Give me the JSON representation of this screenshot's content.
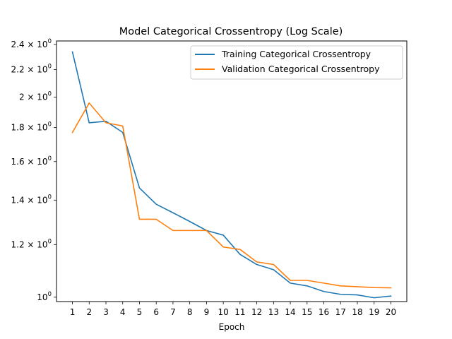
{
  "chart_data": {
    "type": "line",
    "title": "Model Categorical Crossentropy (Log Scale)",
    "xlabel": "Epoch",
    "ylabel": "",
    "yscale": "log",
    "grid": false,
    "legend_position": "top-right",
    "x": [
      1,
      2,
      3,
      4,
      5,
      6,
      7,
      8,
      9,
      10,
      11,
      12,
      13,
      14,
      15,
      16,
      17,
      18,
      19,
      20
    ],
    "x_ticks": [
      "1",
      "2",
      "3",
      "4",
      "5",
      "6",
      "7",
      "8",
      "9",
      "10",
      "11",
      "12",
      "13",
      "14",
      "15",
      "16",
      "17",
      "18",
      "19",
      "20"
    ],
    "xlim": [
      0.05,
      20.95
    ],
    "ylim": [
      0.985,
      2.43
    ],
    "y_ticks": [
      {
        "value": 1.0,
        "base": "10",
        "exp": "0"
      },
      {
        "value": 1.2,
        "base": "1.2 × 10",
        "exp": "0"
      },
      {
        "value": 1.4,
        "base": "1.4 × 10",
        "exp": "0"
      },
      {
        "value": 1.6,
        "base": "1.6 × 10",
        "exp": "0"
      },
      {
        "value": 1.8,
        "base": "1.8 × 10",
        "exp": "0"
      },
      {
        "value": 2.0,
        "base": "2 × 10",
        "exp": "0"
      },
      {
        "value": 2.2,
        "base": "2.2 × 10",
        "exp": "0"
      },
      {
        "value": 2.4,
        "base": "2.4 × 10",
        "exp": "0"
      }
    ],
    "series": [
      {
        "name": "Training Categorical Crossentropy",
        "color": "#1f77b4",
        "values": [
          2.34,
          1.83,
          1.84,
          1.77,
          1.46,
          1.38,
          1.34,
          1.3,
          1.26,
          1.24,
          1.16,
          1.12,
          1.1,
          1.05,
          1.04,
          1.02,
          1.01,
          1.008,
          0.998,
          1.004
        ]
      },
      {
        "name": "Validation Categorical Crossentropy",
        "color": "#ff7f0e",
        "values": [
          1.77,
          1.96,
          1.83,
          1.81,
          1.31,
          1.31,
          1.26,
          1.26,
          1.26,
          1.19,
          1.18,
          1.13,
          1.12,
          1.06,
          1.06,
          1.05,
          1.04,
          1.037,
          1.034,
          1.033
        ]
      }
    ]
  }
}
